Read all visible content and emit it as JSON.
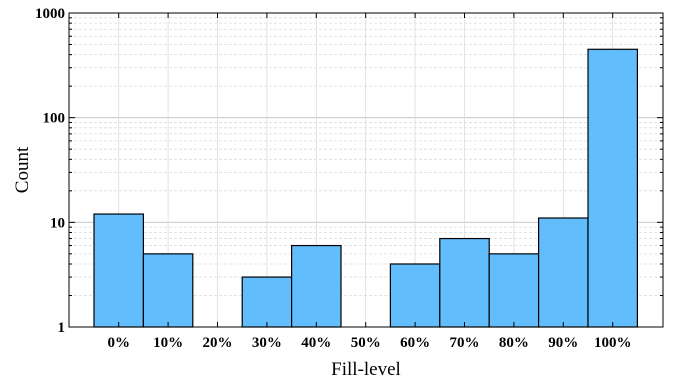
{
  "chart_data": {
    "type": "bar",
    "categories": [
      "0%",
      "10%",
      "20%",
      "30%",
      "40%",
      "50%",
      "60%",
      "70%",
      "80%",
      "90%",
      "100%"
    ],
    "values": [
      12,
      5,
      0,
      3,
      6,
      0,
      4,
      7,
      5,
      11,
      450
    ],
    "title": "",
    "xlabel": "Fill-level",
    "ylabel": "Count",
    "yscale": "log",
    "ylim": [
      1,
      1000
    ],
    "yticks": [
      "1",
      "10",
      "100",
      "1000"
    ],
    "grid": true,
    "bar_color": "#62bdfc",
    "bar_edge_color": "#000000"
  }
}
